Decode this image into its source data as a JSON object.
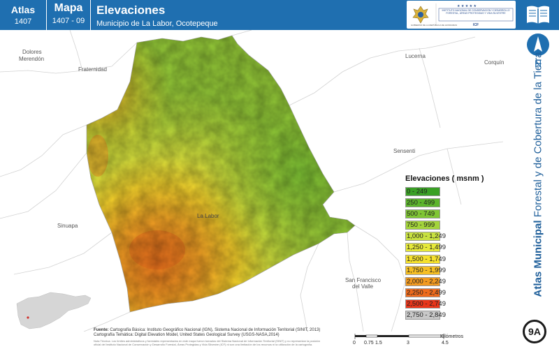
{
  "header": {
    "atlas_label": "Atlas",
    "atlas_number": "1407",
    "mapa_label": "Mapa",
    "mapa_number": "1407 - 09",
    "title": "Elevaciones",
    "subtitle": "Municipio de La Labor, Ocotepeque",
    "brand_color": "#1f6fb0"
  },
  "logos": {
    "gov_text": "GOBIERNO DE LA REPÚBLICA DE HONDURAS",
    "icf_text": "INSTITUTO NACIONAL DE CONSERVACIÓN Y DESARROLLO FORESTAL, ÁREAS PROTEGIDAS Y VIDA SILVESTRE",
    "icf_abbr": "ICF"
  },
  "places": {
    "dolores": "Dolores",
    "merendon": "Merendón",
    "fraternidad": "Fraternidad",
    "lucerna": "Lucerna",
    "corquin": "Corquín",
    "sensenti": "Sensenti",
    "la_labor": "La Labor",
    "sinuapa": "Sinuapa",
    "san_francisco": "San Francisco",
    "del_valle": "del Valle"
  },
  "north_label": "N",
  "legend": {
    "title": "Elevaciones ( msnm )",
    "items": [
      {
        "label": "0 - 249",
        "color": "#3aa025"
      },
      {
        "label": "250 - 499",
        "color": "#5cb52c"
      },
      {
        "label": "500 - 749",
        "color": "#7fc633"
      },
      {
        "label": "750 - 999",
        "color": "#a3d43a"
      },
      {
        "label": "1,000 - 1,249",
        "color": "#c8e13f"
      },
      {
        "label": "1,250 - 1,499",
        "color": "#e6e93a"
      },
      {
        "label": "1,500 - 1,749",
        "color": "#f5e12c"
      },
      {
        "label": "1,750 - 1,999",
        "color": "#f6bf23"
      },
      {
        "label": "2,000 - 2,249",
        "color": "#f29a1f"
      },
      {
        "label": "2,250 - 2,499",
        "color": "#ee6b1c"
      },
      {
        "label": "2,500 - 2,749",
        "color": "#e8351a"
      },
      {
        "label": "2,750 - 2,849",
        "color": "#c8c8c8"
      }
    ]
  },
  "side_title": {
    "bold": "Atlas Municipal",
    "rest": " Forestal y de Cobertura de la Tierra",
    "color": "#1f5f9a"
  },
  "page_badge": "9A",
  "footer": {
    "source_label": "Fuente:",
    "source_line1": "Cartografía Básica: Instituto Geográfico Nacional (IGN), Sistema Nacional de Información Territorial (SINIT, 2013)",
    "source_line2": "Cartografía Temática: Digital Elevation Model, United States Geological Survey (USGS-NASA,2014)",
    "tech_note": "Nota Técnica: Los límites administrativos y forestales representados en este mapa fueron tomados del Sistema Nacional de Información Territorial (SINIT) y no representan la posición oficial del Instituto Nacional de Conservación y Desarrollo Forestal, Áreas Protegidas y Vida Silvestre (ICF) ni son una limitación de los recursos ni la utilización de la cartografía."
  },
  "scale": {
    "ticks": [
      "0",
      "0.75",
      "1.5",
      "3",
      "4.5"
    ],
    "unit": "Kilómetros"
  }
}
